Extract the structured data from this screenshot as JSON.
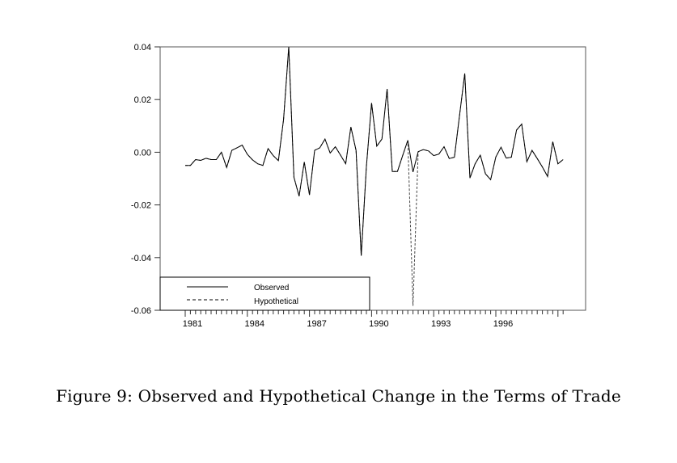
{
  "chart_data": {
    "type": "line",
    "title": "",
    "caption": "Figure 9: Observed and Hypothetical Change in the Terms of Trade",
    "xlabel": "",
    "ylabel": "",
    "x_start": "1981Q1",
    "x_frequency": "quarterly",
    "xlim": [
      1979.75,
      2000.0
    ],
    "ylim": [
      -0.06,
      0.04
    ],
    "yticks": [
      "0.04",
      "0.02",
      "0.00",
      "-0.02",
      "-0.04",
      "-0.06"
    ],
    "ytick_values": [
      0.04,
      0.02,
      0.0,
      -0.02,
      -0.04,
      -0.06
    ],
    "xticks": [
      "1981",
      "1984",
      "1987",
      "1990",
      "1993",
      "1996"
    ],
    "grid": false,
    "legend": {
      "placement": "bottom-left",
      "entries": [
        "Observed",
        "Hypothetical"
      ]
    },
    "series": [
      {
        "name": "Observed",
        "style": "solid",
        "values": [
          -0.005,
          -0.005,
          -0.0028,
          -0.0031,
          -0.0023,
          -0.0028,
          -0.0028,
          0.0,
          -0.0058,
          0.0007,
          0.0017,
          0.0027,
          -0.0008,
          -0.0029,
          -0.0044,
          -0.005,
          0.0014,
          -0.0013,
          -0.0032,
          0.0125,
          0.04,
          -0.0095,
          -0.0167,
          -0.0037,
          -0.0162,
          0.0007,
          0.0017,
          0.005,
          -0.0003,
          0.0021,
          -0.0011,
          -0.0044,
          0.0096,
          0.0007,
          -0.0393,
          -0.0054,
          0.0187,
          0.0023,
          0.005,
          0.024,
          -0.0073,
          -0.0073,
          -0.0013,
          0.0045,
          -0.0075,
          0.0002,
          0.001,
          0.0005,
          -0.0013,
          -0.0007,
          0.0021,
          -0.0024,
          -0.0019,
          0.0141,
          0.0299,
          -0.0098,
          -0.0044,
          -0.0011,
          -0.0082,
          -0.0104,
          -0.0018,
          0.0019,
          -0.0022,
          -0.0019,
          0.0084,
          0.0107,
          -0.0036,
          0.0007,
          -0.0024,
          -0.0056,
          -0.0092,
          0.004,
          -0.0044,
          -0.0028
        ]
      },
      {
        "name": "Hypothetical",
        "style": "dashed",
        "values": [
          -0.005,
          -0.005,
          -0.0028,
          -0.0031,
          -0.0023,
          -0.0028,
          -0.0028,
          0.0,
          -0.0058,
          0.0007,
          0.0017,
          0.0027,
          -0.0008,
          -0.0029,
          -0.0044,
          -0.005,
          0.0014,
          -0.0013,
          -0.0032,
          0.0125,
          0.04,
          -0.0095,
          -0.0167,
          -0.0037,
          -0.0162,
          0.0007,
          0.0017,
          0.005,
          -0.0003,
          0.0021,
          -0.0011,
          -0.0044,
          0.0096,
          0.0007,
          -0.0393,
          -0.0054,
          0.0187,
          0.0023,
          0.005,
          0.024,
          -0.0073,
          -0.0073,
          -0.0013,
          0.0045,
          -0.0583,
          0.0002,
          0.001,
          0.0005,
          -0.0013,
          -0.0007,
          0.0021,
          -0.0024,
          -0.0019,
          0.0141,
          0.0299,
          -0.0098,
          -0.0044,
          -0.0011,
          -0.0082,
          -0.0104,
          -0.0018,
          0.0019,
          -0.0022,
          -0.0019,
          0.0084,
          0.0107,
          -0.0036,
          0.0007,
          -0.0024,
          -0.0056,
          -0.0092,
          0.004,
          -0.0044,
          -0.0028
        ]
      }
    ]
  }
}
